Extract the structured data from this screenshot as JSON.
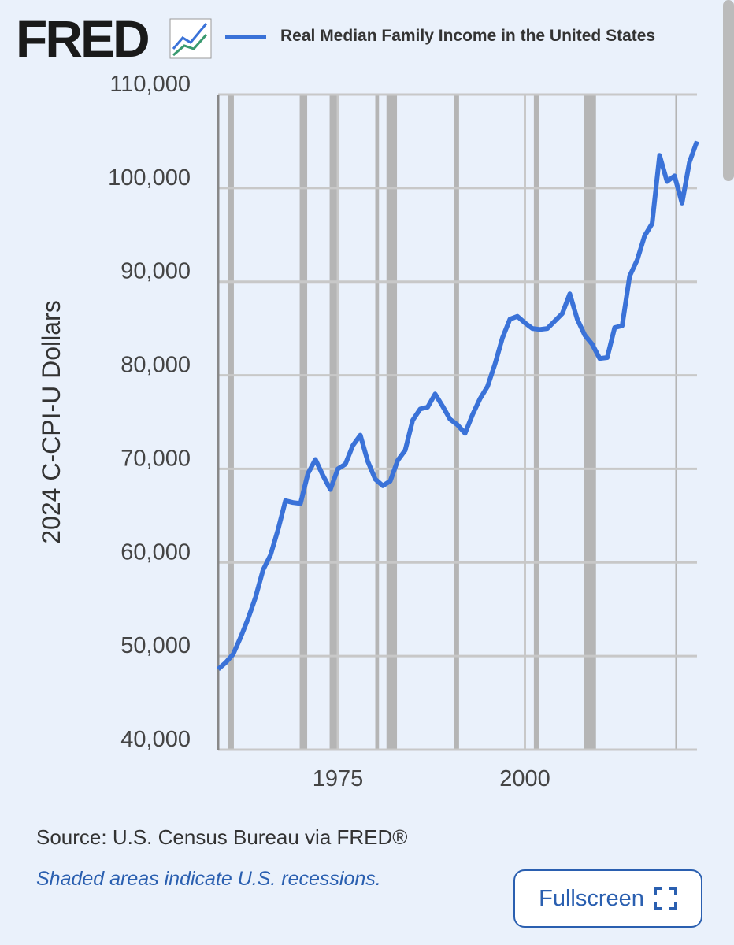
{
  "logo": "FRED",
  "chart_data": {
    "type": "line",
    "y_label": "2024 C-CPI-U Dollars",
    "x": [
      1959,
      1960,
      1961,
      1962,
      1963,
      1964,
      1965,
      1966,
      1967,
      1968,
      1969,
      1970,
      1971,
      1972,
      1973,
      1974,
      1975,
      1976,
      1977,
      1978,
      1979,
      1980,
      1981,
      1982,
      1983,
      1984,
      1985,
      1986,
      1987,
      1988,
      1989,
      1990,
      1991,
      1992,
      1993,
      1994,
      1995,
      1996,
      1997,
      1998,
      1999,
      2000,
      2001,
      2002,
      2003,
      2004,
      2005,
      2006,
      2007,
      2008,
      2009,
      2010,
      2011,
      2012,
      2013,
      2014,
      2015,
      2016,
      2017,
      2018,
      2019,
      2020,
      2021,
      2022,
      2023
    ],
    "series": [
      {
        "name": "Real Median Family Income in the United States",
        "color": "#3a72d8",
        "values": [
          48600,
          49300,
          50200,
          52000,
          54000,
          56300,
          59200,
          60800,
          63500,
          66600,
          66400,
          66300,
          69500,
          71000,
          69300,
          67800,
          70000,
          70500,
          72500,
          73600,
          70800,
          68900,
          68200,
          68700,
          70900,
          72000,
          75200,
          76400,
          76600,
          78000,
          76700,
          75300,
          74700,
          73800,
          75800,
          77500,
          78800,
          81200,
          84000,
          86000,
          86300,
          85600,
          85000,
          84900,
          85000,
          85800,
          86600,
          88700,
          86000,
          84300,
          83300,
          81800,
          81900,
          85100,
          85300,
          90600,
          92300,
          94900,
          96200,
          103500,
          100700,
          101300,
          98400,
          102800,
          105000
        ]
      }
    ],
    "recessions": [
      [
        1960.3,
        1961.1
      ],
      [
        1969.9,
        1970.9
      ],
      [
        1973.9,
        1975.2
      ],
      [
        1980.0,
        1980.5
      ],
      [
        1981.5,
        1982.9
      ],
      [
        1990.5,
        1991.2
      ],
      [
        2001.2,
        2001.9
      ],
      [
        2007.9,
        2009.5
      ],
      [
        2020.1,
        2020.3
      ]
    ],
    "xlim": [
      1959,
      2023
    ],
    "xticks": [
      1975,
      2000
    ],
    "ylim": [
      40000,
      110000
    ],
    "yticks": [
      {
        "value": 40000,
        "label": "40,000"
      },
      {
        "value": 50000,
        "label": "50,000"
      },
      {
        "value": 60000,
        "label": "60,000"
      },
      {
        "value": 70000,
        "label": "70,000"
      },
      {
        "value": 80000,
        "label": "80,000"
      },
      {
        "value": 90000,
        "label": "90,000"
      },
      {
        "value": 100000,
        "label": "100,000"
      },
      {
        "value": 110000,
        "label": "110,000"
      }
    ],
    "grid": true
  },
  "source": "Source: U.S. Census Bureau via FRED®",
  "note": "Shaded areas indicate U.S. recessions.",
  "button": "Fullscreen"
}
